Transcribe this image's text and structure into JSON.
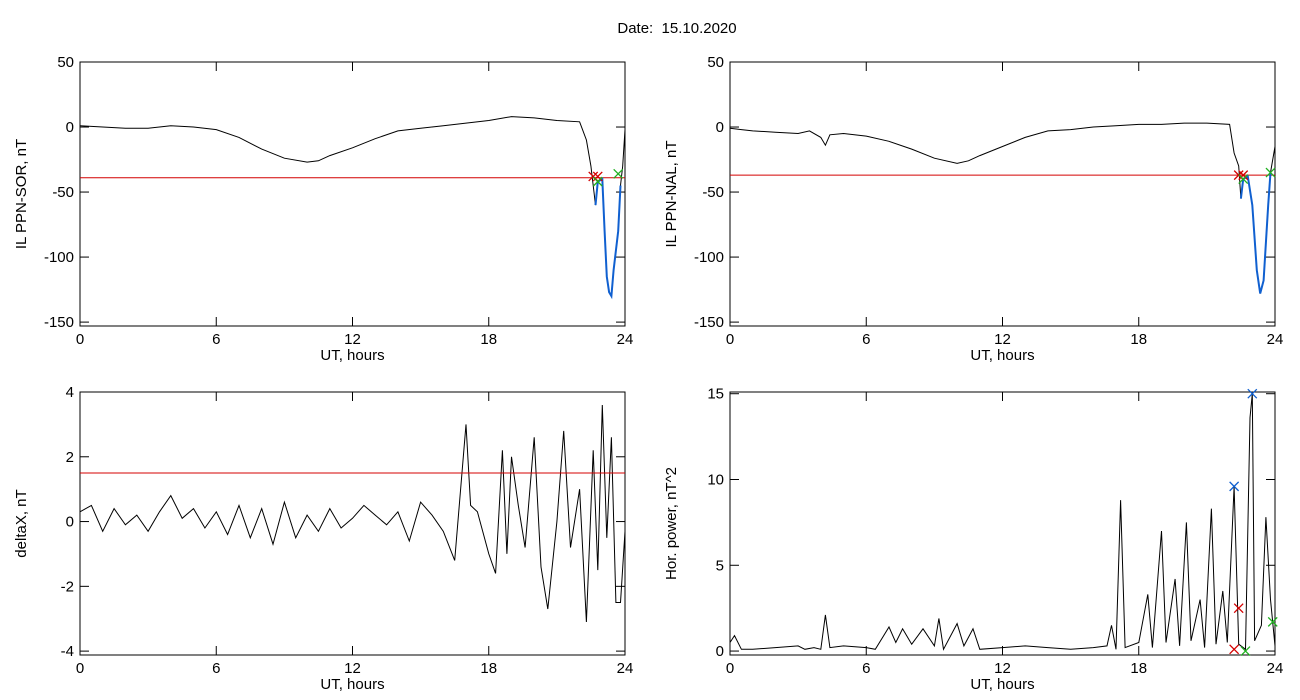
{
  "title": "Date:  15.10.2020",
  "chart_data": [
    {
      "type": "line",
      "ylabel": "IL PPN-SOR, nT",
      "xlabel": "UT, hours",
      "xlim": [
        0,
        24
      ],
      "xticks": [
        0,
        6,
        12,
        18,
        24
      ],
      "ylim": [
        -153,
        50
      ],
      "yticks": [
        50,
        0,
        -50,
        -100,
        -150
      ],
      "series": [
        {
          "color": "#000000",
          "x": [
            0,
            1,
            2,
            3,
            4,
            5,
            6,
            7,
            8,
            9,
            10,
            10.5,
            11,
            12,
            13,
            14,
            15,
            16,
            17,
            18,
            19,
            20,
            21,
            22,
            22.3,
            22.5,
            22.6,
            22.7,
            22.8,
            23.0,
            23.1,
            23.2,
            23.3,
            23.4,
            23.5,
            23.7,
            23.8,
            23.9,
            24
          ],
          "values": [
            1,
            0,
            -1,
            -1,
            1,
            0,
            -2,
            -8,
            -17,
            -24,
            -27,
            -26,
            -22,
            -16,
            -9,
            -3,
            -1,
            1,
            3,
            5,
            8,
            7,
            5,
            4,
            -10,
            -30,
            -45,
            -60,
            -42,
            -40,
            -80,
            -115,
            -127,
            -130,
            -110,
            -80,
            -45,
            -30,
            -2
          ]
        },
        {
          "color": "#d40000",
          "x": [
            0,
            24
          ],
          "values": [
            -39,
            -39
          ]
        },
        {
          "color": "#1060d0",
          "x": [
            22.7,
            22.8,
            23.0,
            23.1,
            23.2,
            23.3,
            23.4,
            23.5,
            23.7,
            23.8
          ],
          "values": [
            -60,
            -42,
            -40,
            -80,
            -115,
            -127,
            -130,
            -110,
            -80,
            -45
          ]
        },
        {
          "color": "#d40000",
          "marker": "x",
          "x": [
            22.6,
            22.8
          ],
          "values": [
            -38,
            -38
          ]
        },
        {
          "color": "#20b020",
          "marker": "x",
          "x": [
            22.8,
            23.7
          ],
          "values": [
            -42,
            -36
          ]
        }
      ]
    },
    {
      "type": "line",
      "ylabel": "IL PPN-NAL, nT",
      "xlabel": "UT, hours",
      "xlim": [
        0,
        24
      ],
      "xticks": [
        0,
        6,
        12,
        18,
        24
      ],
      "ylim": [
        -153,
        50
      ],
      "yticks": [
        50,
        0,
        -50,
        -100,
        -150
      ],
      "series": [
        {
          "color": "#000000",
          "x": [
            0,
            0.5,
            1,
            2,
            3,
            3.5,
            4,
            4.2,
            4.4,
            5,
            6,
            7,
            8,
            9,
            10,
            10.5,
            11,
            12,
            13,
            14,
            15,
            16,
            17,
            18,
            19,
            20,
            21,
            22,
            22.2,
            22.4,
            22.5,
            22.6,
            22.8,
            23.0,
            23.2,
            23.35,
            23.5,
            23.7,
            23.8,
            24
          ],
          "values": [
            -1,
            -2,
            -3,
            -4,
            -5,
            -3,
            -8,
            -14,
            -6,
            -5,
            -7,
            -11,
            -17,
            -24,
            -28,
            -26,
            -22,
            -15,
            -8,
            -3,
            -2,
            0,
            1,
            2,
            2,
            3,
            3,
            2,
            -20,
            -30,
            -55,
            -40,
            -38,
            -60,
            -110,
            -128,
            -118,
            -60,
            -35,
            -15
          ]
        },
        {
          "color": "#d40000",
          "x": [
            0,
            24
          ],
          "values": [
            -37,
            -37
          ]
        },
        {
          "color": "#1060d0",
          "x": [
            22.5,
            22.6,
            22.8,
            23.0,
            23.2,
            23.35,
            23.5,
            23.7,
            23.8
          ],
          "values": [
            -55,
            -40,
            -38,
            -60,
            -110,
            -128,
            -118,
            -60,
            -35
          ]
        },
        {
          "color": "#d40000",
          "marker": "x",
          "x": [
            22.4,
            22.6
          ],
          "values": [
            -37,
            -37
          ]
        },
        {
          "color": "#20b020",
          "marker": "x",
          "x": [
            22.6,
            23.8
          ],
          "values": [
            -40,
            -35
          ]
        }
      ]
    },
    {
      "type": "line",
      "ylabel": "deltaX, nT",
      "xlabel": "UT, hours",
      "xlim": [
        0,
        24
      ],
      "xticks": [
        0,
        6,
        12,
        18,
        24
      ],
      "ylim": [
        -4.12,
        4
      ],
      "yticks": [
        4,
        2,
        0,
        -2,
        -4
      ],
      "series": [
        {
          "color": "#000000",
          "x": [
            0,
            0.5,
            1,
            1.5,
            2,
            2.5,
            3,
            3.5,
            4,
            4.5,
            5,
            5.5,
            6,
            6.5,
            7,
            7.5,
            8,
            8.5,
            9,
            9.5,
            10,
            10.5,
            11,
            11.5,
            12,
            12.5,
            13,
            13.5,
            14,
            14.5,
            15,
            15.5,
            16,
            16.5,
            17,
            17.2,
            17.5,
            18,
            18.3,
            18.6,
            18.8,
            19,
            19.3,
            19.6,
            20,
            20.3,
            20.6,
            21,
            21.3,
            21.6,
            22,
            22.3,
            22.6,
            22.8,
            23,
            23.2,
            23.4,
            23.6,
            23.8,
            24
          ],
          "values": [
            0.3,
            0.5,
            -0.3,
            0.4,
            -0.1,
            0.2,
            -0.3,
            0.3,
            0.8,
            0.1,
            0.4,
            -0.2,
            0.3,
            -0.4,
            0.5,
            -0.5,
            0.4,
            -0.7,
            0.6,
            -0.5,
            0.2,
            -0.3,
            0.4,
            -0.2,
            0.1,
            0.5,
            0.2,
            -0.1,
            0.3,
            -0.6,
            0.6,
            0.2,
            -0.3,
            -1.2,
            3.0,
            0.5,
            0.3,
            -1.0,
            -1.6,
            2.2,
            -1.0,
            2.0,
            0.5,
            -0.8,
            2.6,
            -1.4,
            -2.7,
            0.0,
            2.8,
            -0.8,
            1.0,
            -3.1,
            2.2,
            -1.5,
            3.6,
            -0.5,
            2.6,
            -2.5,
            -2.5,
            -0.3
          ]
        },
        {
          "color": "#d40000",
          "x": [
            0,
            24
          ],
          "values": [
            1.5,
            1.5
          ]
        }
      ]
    },
    {
      "type": "line",
      "ylabel": "Hor. power, nT^2",
      "xlabel": "UT, hours",
      "xlim": [
        0,
        24
      ],
      "xticks": [
        0,
        6,
        12,
        18,
        24
      ],
      "ylim": [
        -0.23,
        15.1
      ],
      "yticks": [
        15,
        10,
        5,
        0
      ],
      "series": [
        {
          "color": "#000000",
          "x": [
            0,
            0.2,
            0.5,
            1,
            2,
            3,
            3.3,
            3.7,
            4,
            4.2,
            4.4,
            5,
            6,
            6.4,
            7,
            7.3,
            7.6,
            8,
            8.5,
            9,
            9.2,
            9.4,
            10,
            10.3,
            10.7,
            11,
            12,
            13,
            14,
            15,
            16,
            16.6,
            16.8,
            17,
            17.2,
            17.4,
            18,
            18.4,
            18.6,
            19,
            19.2,
            19.6,
            19.8,
            20.1,
            20.3,
            20.7,
            20.9,
            21.2,
            21.4,
            21.7,
            21.9,
            22.2,
            22.4,
            22.7,
            22.9,
            23.0,
            23.1,
            23.4,
            23.6,
            23.8,
            24
          ],
          "values": [
            0.5,
            0.9,
            0.1,
            0.1,
            0.2,
            0.3,
            0.1,
            0.2,
            0.1,
            2.1,
            0.2,
            0.3,
            0.2,
            0.1,
            1.4,
            0.5,
            1.3,
            0.4,
            1.3,
            0.3,
            1.9,
            0.1,
            1.6,
            0.3,
            1.3,
            0.1,
            0.2,
            0.3,
            0.2,
            0.1,
            0.2,
            0.3,
            1.5,
            0.1,
            8.8,
            0.2,
            0.5,
            3.3,
            0.2,
            7.0,
            0.5,
            4.2,
            0.3,
            7.5,
            0.6,
            3.0,
            0.2,
            8.3,
            0.4,
            3.5,
            0.5,
            9.6,
            0.4,
            0.1,
            13.6,
            15,
            0.6,
            1.5,
            7.8,
            3.0,
            0.3
          ]
        },
        {
          "color": "#1060d0",
          "marker": "x",
          "x": [
            22.2,
            23.0
          ],
          "values": [
            9.6,
            15
          ]
        },
        {
          "color": "#d40000",
          "marker": "x",
          "x": [
            22.2,
            22.4
          ],
          "values": [
            0.1,
            2.5
          ]
        },
        {
          "color": "#20b020",
          "marker": "x",
          "x": [
            22.7,
            23.9
          ],
          "values": [
            0,
            1.7
          ]
        }
      ]
    }
  ]
}
